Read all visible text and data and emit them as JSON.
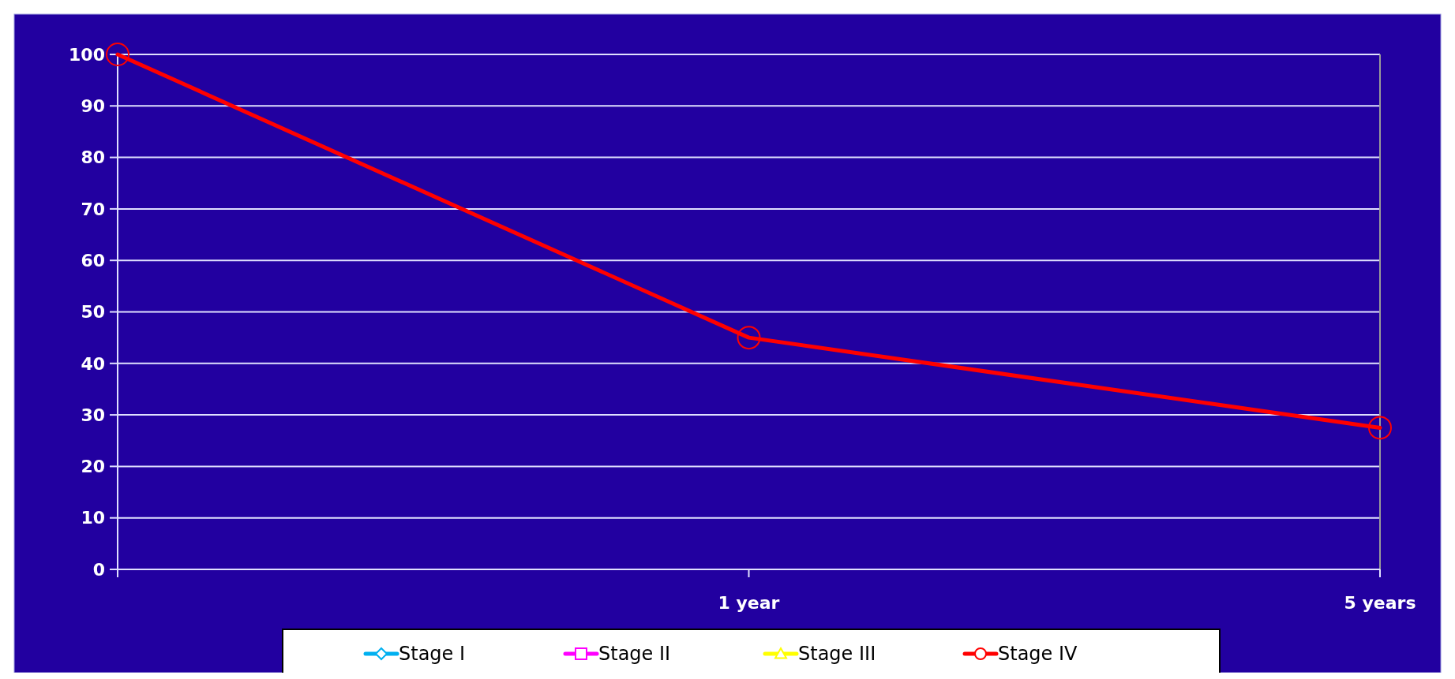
{
  "chart_data": {
    "type": "line",
    "categories": [
      null,
      "1 year",
      "5 years"
    ],
    "series": [
      {
        "name": "Stage I",
        "color": "#00b0f0",
        "marker": "diamond",
        "values": [
          null,
          null,
          null
        ]
      },
      {
        "name": "Stage II",
        "color": "#ff00ff",
        "marker": "square",
        "values": [
          null,
          null,
          null
        ]
      },
      {
        "name": "Stage III",
        "color": "#ffff00",
        "marker": "triangle",
        "values": [
          null,
          null,
          null
        ]
      },
      {
        "name": "Stage IV",
        "color": "#ff0000",
        "marker": "circle",
        "values": [
          100,
          45,
          27.5
        ]
      }
    ],
    "ylim": [
      0,
      100
    ],
    "yticks": [
      0,
      10,
      20,
      30,
      40,
      50,
      60,
      70,
      80,
      90,
      100
    ],
    "grid": "y",
    "legend": "bottom"
  }
}
